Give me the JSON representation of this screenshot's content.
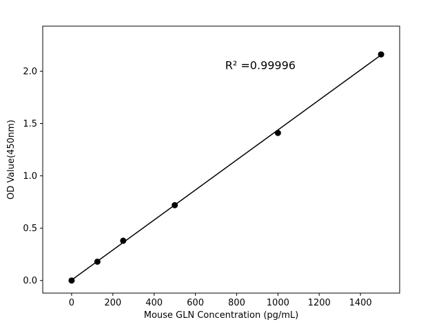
{
  "chart_data": {
    "type": "scatter",
    "title": "",
    "xlabel": "Mouse GLN Concentration (pg/mL)",
    "ylabel": "OD Value(450nm)",
    "x": [
      0,
      125,
      250,
      500,
      1000,
      1500
    ],
    "y": [
      0.0,
      0.18,
      0.38,
      0.72,
      1.41,
      2.16
    ],
    "fit_line": {
      "x1": 0,
      "y1": 0.005,
      "x2": 1500,
      "y2": 2.155
    },
    "annotation": {
      "text": "R² =0.99996",
      "x": 915,
      "y": 2.02
    },
    "xlim": [
      -140,
      1590
    ],
    "ylim": [
      -0.12,
      2.43
    ],
    "xticks": [
      0,
      200,
      400,
      600,
      800,
      1000,
      1200,
      1400
    ],
    "xtick_labels": [
      "0",
      "200",
      "400",
      "600",
      "800",
      "1000",
      "1200",
      "1400"
    ],
    "yticks": [
      0.0,
      0.5,
      1.0,
      1.5,
      2.0
    ],
    "ytick_labels": [
      "0.0",
      "0.5",
      "1.0",
      "1.5",
      "2.0"
    ],
    "legend": "none",
    "grid": false,
    "marker_color": "#000000",
    "line_color": "#000000",
    "background": "#ffffff"
  }
}
